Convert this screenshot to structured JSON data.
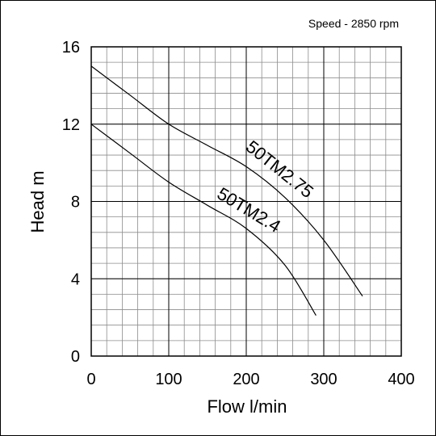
{
  "chart_data": {
    "type": "line",
    "title": "",
    "note": "Speed - 2850 rpm",
    "xlabel": "Flow l/min",
    "ylabel": "Head m",
    "xlim": [
      0,
      400
    ],
    "ylim": [
      0,
      16
    ],
    "x_ticks": [
      0,
      100,
      200,
      300,
      400
    ],
    "y_ticks": [
      0,
      4,
      8,
      12,
      16
    ],
    "grid": true,
    "series": [
      {
        "name": "50TM2.75",
        "x": [
          0,
          50,
          100,
          150,
          200,
          250,
          300,
          350
        ],
        "y": [
          15.0,
          13.5,
          12.0,
          10.9,
          9.8,
          8.2,
          6.0,
          3.1
        ]
      },
      {
        "name": "50TM2.4",
        "x": [
          0,
          50,
          100,
          150,
          200,
          250,
          290
        ],
        "y": [
          12.0,
          10.5,
          9.0,
          7.8,
          6.6,
          4.7,
          2.1
        ]
      }
    ]
  }
}
